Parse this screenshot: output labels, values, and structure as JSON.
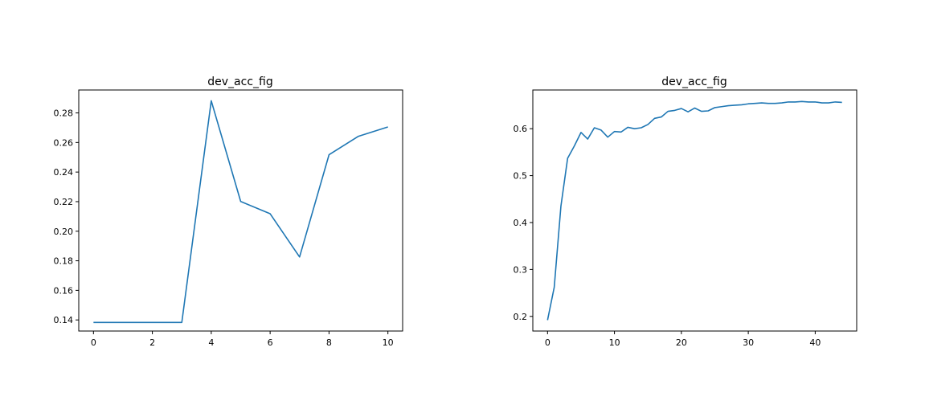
{
  "chart_data": [
    {
      "type": "line",
      "title": "dev_acc_fig",
      "xlabel": "",
      "ylabel": "",
      "xlim": [
        -0.5,
        10.5
      ],
      "ylim": [
        0.1325,
        0.2955
      ],
      "xticks": [
        0,
        2,
        4,
        6,
        8,
        10
      ],
      "xtick_labels": [
        "0",
        "2",
        "4",
        "6",
        "8",
        "10"
      ],
      "yticks": [
        0.14,
        0.16,
        0.18,
        0.2,
        0.22,
        0.24,
        0.26,
        0.28
      ],
      "ytick_labels": [
        "0.14",
        "0.16",
        "0.18",
        "0.20",
        "0.22",
        "0.24",
        "0.26",
        "0.28"
      ],
      "grid": false,
      "series": [
        {
          "color": "#1f77b4",
          "x": [
            0,
            1,
            2,
            3,
            4,
            5,
            6,
            7,
            8,
            9,
            10
          ],
          "values": [
            0.1383,
            0.1383,
            0.1383,
            0.1383,
            0.2882,
            0.2201,
            0.2118,
            0.1826,
            0.2517,
            0.2642,
            0.2705
          ]
        }
      ]
    },
    {
      "type": "line",
      "title": "dev_acc_fig",
      "xlabel": "",
      "ylabel": "",
      "xlim": [
        -2.2,
        46.2
      ],
      "ylim": [
        0.1688,
        0.6825
      ],
      "xticks": [
        0,
        10,
        20,
        30,
        40
      ],
      "xtick_labels": [
        "0",
        "10",
        "20",
        "30",
        "40"
      ],
      "yticks": [
        0.2,
        0.3,
        0.4,
        0.5,
        0.6
      ],
      "ytick_labels": [
        "0.2",
        "0.3",
        "0.4",
        "0.5",
        "0.6"
      ],
      "grid": false,
      "series": [
        {
          "color": "#1f77b4",
          "x": [
            0,
            1,
            2,
            3,
            4,
            5,
            6,
            7,
            8,
            9,
            10,
            11,
            12,
            13,
            14,
            15,
            16,
            17,
            18,
            19,
            20,
            21,
            22,
            23,
            24,
            25,
            26,
            27,
            28,
            29,
            30,
            31,
            32,
            33,
            34,
            35,
            36,
            37,
            38,
            39,
            40,
            41,
            42,
            43,
            44
          ],
          "values": [
            0.192,
            0.262,
            0.435,
            0.537,
            0.563,
            0.592,
            0.578,
            0.602,
            0.597,
            0.582,
            0.594,
            0.593,
            0.603,
            0.6,
            0.602,
            0.609,
            0.622,
            0.625,
            0.637,
            0.639,
            0.643,
            0.636,
            0.644,
            0.637,
            0.638,
            0.645,
            0.647,
            0.649,
            0.65,
            0.651,
            0.653,
            0.654,
            0.655,
            0.654,
            0.654,
            0.655,
            0.657,
            0.657,
            0.658,
            0.657,
            0.657,
            0.655,
            0.655,
            0.657,
            0.656
          ]
        }
      ]
    }
  ]
}
